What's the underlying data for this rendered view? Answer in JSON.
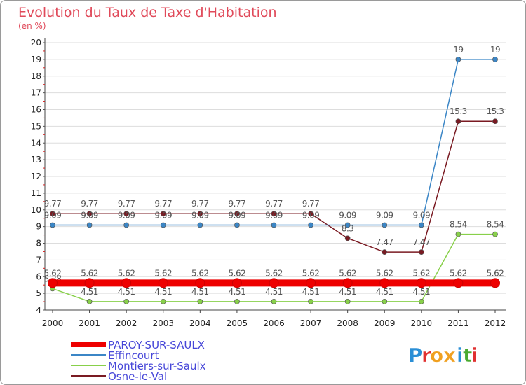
{
  "chart_data": {
    "type": "line",
    "title": "Evolution du Taux de Taxe d'Habitation",
    "subtitle": "(en %)",
    "xlabel": "",
    "ylabel": "",
    "ylim": [
      4,
      20
    ],
    "yticks": [
      "4",
      "5",
      "6",
      "7",
      "8",
      "9",
      "10",
      "11",
      "12",
      "13",
      "14",
      "15",
      "16",
      "17",
      "18",
      "19",
      "20"
    ],
    "categories": [
      "2000",
      "2001",
      "2002",
      "2003",
      "2004",
      "2005",
      "2006",
      "2007",
      "2008",
      "2009",
      "2010",
      "2011",
      "2012"
    ],
    "grid": "horizontal",
    "legend_position": "bottom-left",
    "series": [
      {
        "name": "PAROY-SUR-SAULX",
        "color": "#ee0000",
        "values": [
          5.62,
          5.62,
          5.62,
          5.62,
          5.62,
          5.62,
          5.62,
          5.62,
          5.62,
          5.62,
          5.62,
          5.62,
          5.62
        ],
        "labels": [
          "5.62",
          "5.62",
          "5.62",
          "5.62",
          "5.62",
          "5.62",
          "5.62",
          "5.62",
          "5.62",
          "5.62",
          "5.62",
          "5.62",
          "5.62"
        ]
      },
      {
        "name": "Effincourt",
        "color": "#3b86c6",
        "values": [
          9.09,
          9.09,
          9.09,
          9.09,
          9.09,
          9.09,
          9.09,
          9.09,
          9.09,
          9.09,
          9.09,
          19,
          19
        ],
        "labels": [
          "9.09",
          "9.09",
          "9.09",
          "9.09",
          "9.09",
          "9.09",
          "9.09",
          "9.09",
          "9.09",
          "9.09",
          "9.09",
          "19",
          "19"
        ]
      },
      {
        "name": "Montiers-sur-Saulx",
        "color": "#88d04a",
        "values": [
          5.28,
          4.51,
          4.51,
          4.51,
          4.51,
          4.51,
          4.51,
          4.51,
          4.51,
          4.51,
          4.51,
          8.54,
          8.54
        ],
        "labels": [
          "5.28",
          "4.51",
          "4.51",
          "4.51",
          "4.51",
          "4.51",
          "4.51",
          "4.51",
          "4.51",
          "4.51",
          "4.51",
          "8.54",
          "8.54"
        ]
      },
      {
        "name": "Osne-le-Val",
        "color": "#7a1a22",
        "values": [
          9.77,
          9.77,
          9.77,
          9.77,
          9.77,
          9.77,
          9.77,
          9.77,
          8.3,
          7.47,
          7.47,
          15.3,
          15.3
        ],
        "labels": [
          "9.77",
          "9.77",
          "9.77",
          "9.77",
          "9.77",
          "9.77",
          "9.77",
          "9.77",
          "8.3",
          "7.47",
          "7.47",
          "15.3",
          "15.3"
        ]
      }
    ]
  },
  "logo": {
    "letters": [
      "P",
      "r",
      "o",
      "x",
      "i",
      "t",
      "i"
    ],
    "colors": [
      "#2b8fd6",
      "#e03030",
      "#f0a020",
      "#f0a020",
      "#2b8fd6",
      "#4aaa30",
      "#e03030"
    ]
  }
}
